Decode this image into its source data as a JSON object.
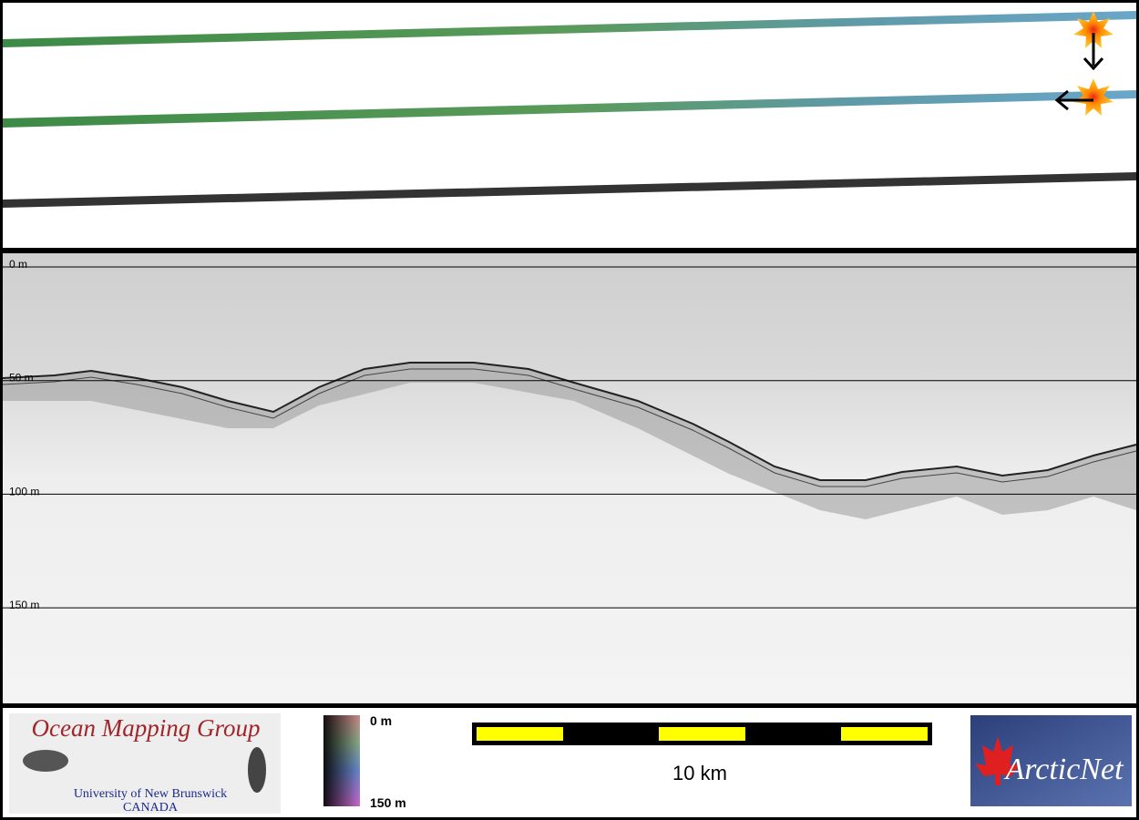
{
  "depth_axis": {
    "labels": [
      "0 m",
      "50 m",
      "100 m",
      "150 m"
    ]
  },
  "footer": {
    "logo_left": {
      "title": "Ocean Mapping Group",
      "line1": "University of New Brunswick",
      "line2": "CANADA"
    },
    "colorbar": {
      "top_label": "0 m",
      "bottom_label": "150 m"
    },
    "scale_bar": {
      "label": "10 km"
    },
    "logo_right": {
      "title": "ArcticNet"
    }
  }
}
